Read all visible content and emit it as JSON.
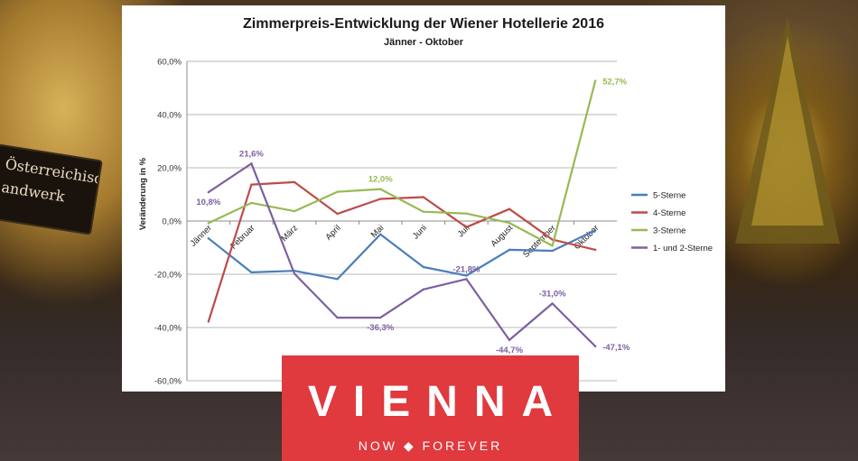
{
  "background": {
    "stall_sign_line1": "Österreichisches",
    "stall_sign_line2": "andwerk"
  },
  "brand": {
    "name": "VIENNA",
    "tagline": "NOW ◆ FOREVER",
    "color": "#e0393e"
  },
  "chart_data": {
    "type": "line",
    "title": "Zimmerpreis-Entwicklung der Wiener Hotellerie 2016",
    "subtitle": "Jänner - Oktober",
    "xlabel": "",
    "ylabel": "Veränderung in %",
    "ylim": [
      -60,
      60
    ],
    "yticks": [
      -60,
      -40,
      -20,
      0,
      20,
      40,
      60
    ],
    "ytick_labels": [
      "-60,0%",
      "-40,0%",
      "-20,0%",
      "0,0%",
      "20,0%",
      "40,0%",
      "60,0%"
    ],
    "grid": true,
    "legend_position": "right",
    "categories": [
      "Jänner",
      "Februar",
      "März",
      "April",
      "Mai",
      "Juni",
      "Juli",
      "August",
      "September",
      "Oktober"
    ],
    "series": [
      {
        "name": "5-Sterne",
        "color": "#4a7ebb",
        "values": [
          -6.5,
          -19.3,
          -18.7,
          -21.8,
          -5.0,
          -17.3,
          -20.5,
          -10.8,
          -11.2,
          -3.5
        ],
        "labels": [
          null,
          null,
          null,
          null,
          null,
          null,
          null,
          null,
          null,
          null
        ]
      },
      {
        "name": "4-Sterne",
        "color": "#be4b48",
        "values": [
          -37.8,
          13.7,
          14.6,
          2.7,
          8.3,
          9.0,
          -2.3,
          4.5,
          -7.0,
          -10.8
        ],
        "labels": [
          null,
          null,
          null,
          null,
          null,
          null,
          null,
          null,
          null,
          null
        ]
      },
      {
        "name": "3-Sterne",
        "color": "#98b954",
        "values": [
          -0.8,
          6.8,
          3.7,
          11.0,
          12.0,
          3.5,
          2.8,
          -0.7,
          -9.3,
          52.7
        ],
        "labels": [
          null,
          null,
          null,
          null,
          "12,0%",
          null,
          null,
          null,
          null,
          "52,7%"
        ]
      },
      {
        "name": "1- und 2-Sterne",
        "color": "#7d60a0",
        "values": [
          10.8,
          21.6,
          -19.8,
          -36.3,
          -36.3,
          -25.7,
          -21.8,
          -44.7,
          -31.0,
          -47.1
        ],
        "labels": [
          "10,8%",
          "21,6%",
          null,
          null,
          "-36,3%",
          null,
          "-21,8%",
          "-44,7%",
          "-31,0%",
          "-47,1%"
        ]
      }
    ]
  }
}
